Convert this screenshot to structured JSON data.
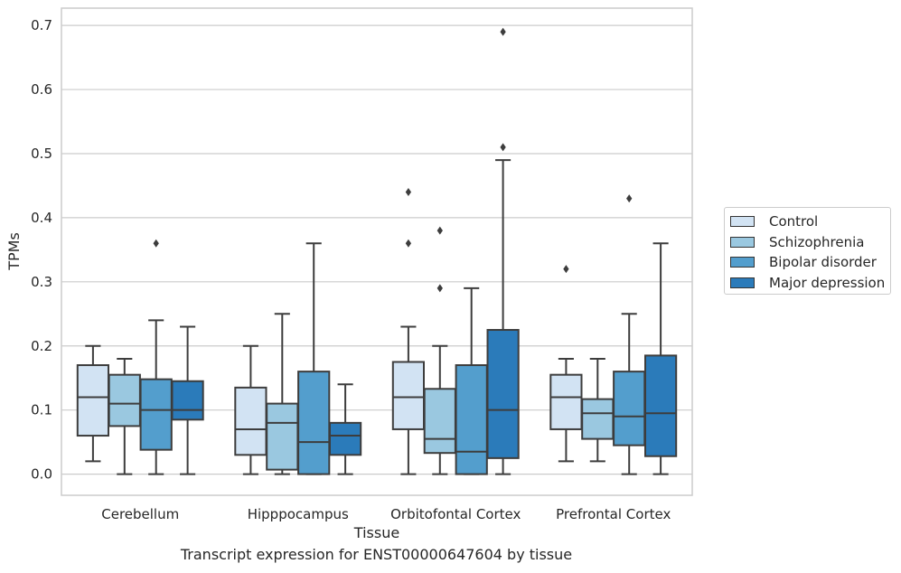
{
  "caption": "Transcript expression for ENST00000647604 by tissue",
  "chart_data": {
    "type": "box",
    "title": "",
    "xlabel": "Tissue",
    "ylabel": "TPMs",
    "ylim": [
      -0.033,
      0.727
    ],
    "yticks": [
      0.0,
      0.1,
      0.2,
      0.3,
      0.4,
      0.5,
      0.6,
      0.7
    ],
    "ytick_labels": [
      "0.0",
      "0.1",
      "0.2",
      "0.3",
      "0.4",
      "0.5",
      "0.6",
      "0.7"
    ],
    "grid": "horizontal",
    "legend_position": "right",
    "categories": [
      "Cerebellum",
      "Hipppocampus",
      "Orbitofontal Cortex",
      "Prefrontal Cortex"
    ],
    "series": [
      {
        "name": "Control",
        "color": "#d2e3f3",
        "boxes": [
          {
            "whislo": 0.02,
            "q1": 0.06,
            "med": 0.12,
            "q3": 0.17,
            "whishi": 0.2,
            "fliers": []
          },
          {
            "whislo": 0.0,
            "q1": 0.03,
            "med": 0.07,
            "q3": 0.135,
            "whishi": 0.2,
            "fliers": []
          },
          {
            "whislo": 0.0,
            "q1": 0.07,
            "med": 0.12,
            "q3": 0.175,
            "whishi": 0.23,
            "fliers": [
              0.36,
              0.44
            ]
          },
          {
            "whislo": 0.02,
            "q1": 0.07,
            "med": 0.12,
            "q3": 0.155,
            "whishi": 0.18,
            "fliers": [
              0.32
            ]
          }
        ]
      },
      {
        "name": "Schizophrenia",
        "color": "#9ac8e0",
        "boxes": [
          {
            "whislo": 0.0,
            "q1": 0.075,
            "med": 0.11,
            "q3": 0.155,
            "whishi": 0.18,
            "fliers": []
          },
          {
            "whislo": 0.0,
            "q1": 0.007,
            "med": 0.08,
            "q3": 0.11,
            "whishi": 0.25,
            "fliers": []
          },
          {
            "whislo": 0.0,
            "q1": 0.033,
            "med": 0.055,
            "q3": 0.133,
            "whishi": 0.2,
            "fliers": [
              0.29,
              0.38
            ]
          },
          {
            "whislo": 0.02,
            "q1": 0.055,
            "med": 0.095,
            "q3": 0.117,
            "whishi": 0.18,
            "fliers": []
          }
        ]
      },
      {
        "name": "Bipolar disorder",
        "color": "#539ecd",
        "boxes": [
          {
            "whislo": 0.0,
            "q1": 0.038,
            "med": 0.1,
            "q3": 0.148,
            "whishi": 0.24,
            "fliers": [
              0.36
            ]
          },
          {
            "whislo": 0.0,
            "q1": 0.0,
            "med": 0.05,
            "q3": 0.16,
            "whishi": 0.36,
            "fliers": []
          },
          {
            "whislo": 0.0,
            "q1": 0.0,
            "med": 0.035,
            "q3": 0.17,
            "whishi": 0.29,
            "fliers": []
          },
          {
            "whislo": 0.0,
            "q1": 0.045,
            "med": 0.09,
            "q3": 0.16,
            "whishi": 0.25,
            "fliers": [
              0.43
            ]
          }
        ]
      },
      {
        "name": "Major depression",
        "color": "#2b7bba",
        "boxes": [
          {
            "whislo": 0.0,
            "q1": 0.085,
            "med": 0.1,
            "q3": 0.145,
            "whishi": 0.23,
            "fliers": []
          },
          {
            "whislo": 0.0,
            "q1": 0.03,
            "med": 0.06,
            "q3": 0.08,
            "whishi": 0.14,
            "fliers": []
          },
          {
            "whislo": 0.0,
            "q1": 0.025,
            "med": 0.1,
            "q3": 0.225,
            "whishi": 0.49,
            "fliers": [
              0.51,
              0.69
            ]
          },
          {
            "whislo": 0.0,
            "q1": 0.028,
            "med": 0.095,
            "q3": 0.185,
            "whishi": 0.36,
            "fliers": []
          }
        ]
      }
    ]
  }
}
